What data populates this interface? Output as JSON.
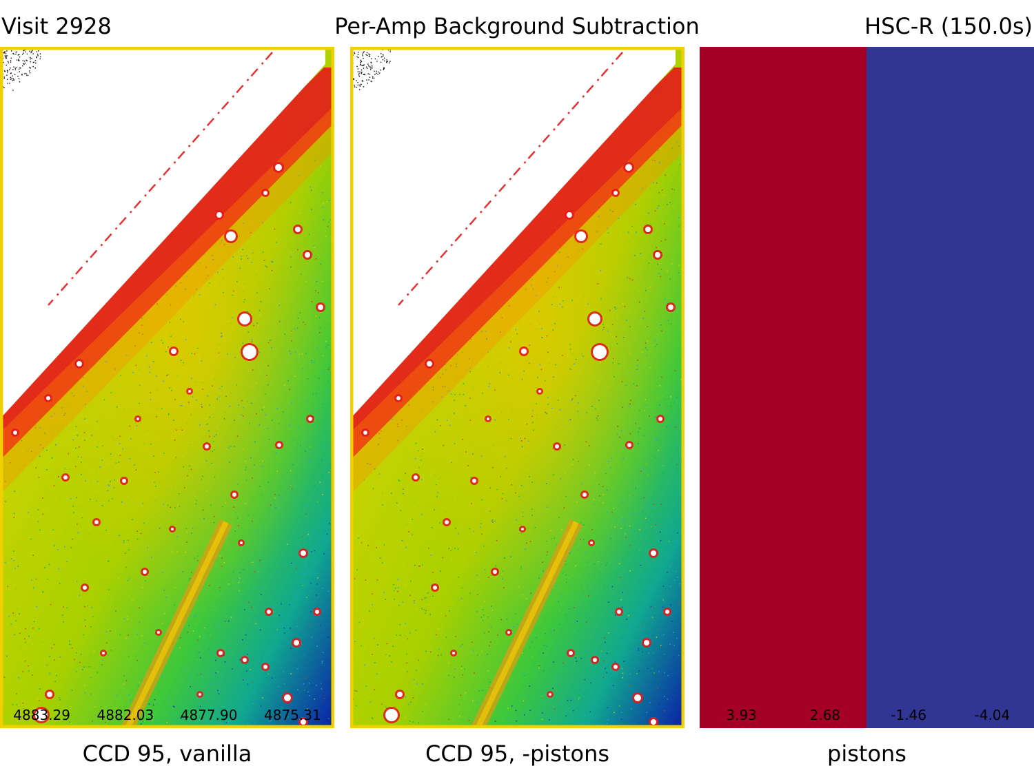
{
  "header": {
    "visit": "Visit 2928",
    "title": "Per-Amp Background Subtraction",
    "filter": "HSC-R (150.0s)"
  },
  "panels": [
    {
      "caption": "CCD 95, vanilla",
      "amp_values": [
        "4883.29",
        "4882.03",
        "4877.90",
        "4875.31"
      ]
    },
    {
      "caption": "CCD 95, -pistons",
      "amp_values": []
    },
    {
      "caption": "pistons",
      "amp_values": [
        "3.93",
        "2.68",
        "-1.46",
        "-4.04"
      ]
    }
  ],
  "colors": {
    "piston_high": "#a50026",
    "piston_low": "#313695",
    "frame": "#f0d000",
    "saturated": "#ffffff",
    "halo": "#e41a1c"
  }
}
